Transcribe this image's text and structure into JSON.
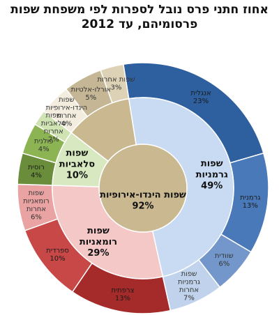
{
  "chart_data": {
    "type": "pie",
    "title": "אחוז חתני פרס נובל לספרות לפי משפחת שפות פרסומיהם, עד 2012",
    "outer_ring": [
      {
        "label": "אנגלית",
        "value": 23,
        "display": "23%",
        "color": "#2e5f9f"
      },
      {
        "label": "גרמנית",
        "value": 13,
        "display": "13%",
        "color": "#4a79b9"
      },
      {
        "label": "שוודית",
        "value": 6,
        "display": "6%",
        "color": "#7397cb"
      },
      {
        "label": "שפות גרמניות אחרות",
        "value": 7,
        "display": "7%",
        "color": "#c1d3ec"
      },
      {
        "label": "צרפתית",
        "value": 13,
        "display": "13%",
        "color": "#a52a2a"
      },
      {
        "label": "ספרדית",
        "value": 10,
        "display": "10%",
        "color": "#c84848"
      },
      {
        "label": "שפות רומאניות אחרות",
        "value": 6,
        "display": "6%",
        "color": "#e9a3a3"
      },
      {
        "label": "רוסית",
        "value": 4,
        "display": "4%",
        "color": "#698d3a"
      },
      {
        "label": "פולנית",
        "value": 4,
        "display": "4%",
        "color": "#8db453"
      },
      {
        "label": "שפות סלאביות אחרות",
        "value": 2,
        "display": "2%",
        "color": "#d0e3b3"
      },
      {
        "label": "שפות הינדו-אירופיות אחרות",
        "value": 4,
        "display": "4%",
        "color": "#f2eddf"
      },
      {
        "label": "אורלו-אלטיות",
        "value": 5,
        "display": "5%",
        "color": "#c5b795"
      },
      {
        "label": "שפות אחרות",
        "value": 3,
        "display": "3%",
        "color": "#ddd2b6"
      }
    ],
    "middle_ring": [
      {
        "label": "שפות גרמניות",
        "value": 49,
        "display": "49%",
        "color": "#c9dbf3"
      },
      {
        "label": "שפות רומאניות",
        "value": 29,
        "display": "29%",
        "color": "#f5c8c8"
      },
      {
        "label": "שפות סלאביות",
        "value": 10,
        "display": "10%",
        "color": "#d8e8c0"
      }
    ],
    "center": {
      "label": "שפות הינדו-אירופיות",
      "value": 92,
      "display": "92%",
      "color": "#c9b890"
    }
  }
}
